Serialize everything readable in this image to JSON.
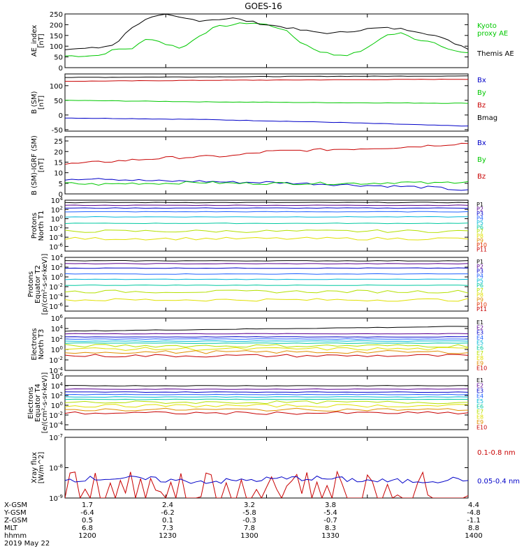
{
  "title": "GOES-16",
  "colors": {
    "black": "#000000",
    "blue": "#0000c8",
    "green": "#00c800",
    "red": "#c80000",
    "p1": "#000000",
    "p2": "#5a0090",
    "p3": "#0000c8",
    "p4": "#1e60ff",
    "p5": "#00b8d8",
    "p6": "#00c8a0",
    "p7": "#b4e000",
    "p8": "#e0e000",
    "p9": "#e09000",
    "p10": "#e03000",
    "p11": "#c80000"
  },
  "chart_data": [
    {
      "type": "line",
      "ylabel": "AE_index\n[nT]",
      "ylim": [
        0,
        250
      ],
      "yticks": [
        "0",
        "50",
        "100",
        "150",
        "200",
        "250"
      ],
      "yticks_values": [
        0,
        50,
        100,
        150,
        200,
        250
      ],
      "x": [
        0,
        5,
        10,
        15,
        20,
        25,
        30,
        35,
        40,
        45,
        50,
        55,
        60,
        65,
        70,
        75,
        80,
        85,
        90,
        95,
        100,
        105,
        110,
        115,
        120
      ],
      "series": [
        {
          "name": "Kyoto\nproxy AE",
          "color": "green",
          "values": [
            55,
            55,
            57,
            85,
            90,
            140,
            110,
            90,
            150,
            190,
            200,
            210,
            200,
            180,
            120,
            80,
            60,
            60,
            90,
            150,
            160,
            130,
            120,
            80,
            65
          ]
        },
        {
          "name": "Themis AE",
          "color": "black",
          "values": [
            85,
            90,
            92,
            110,
            190,
            230,
            245,
            230,
            220,
            225,
            230,
            215,
            200,
            190,
            175,
            165,
            160,
            170,
            180,
            185,
            180,
            170,
            150,
            120,
            90
          ]
        }
      ]
    },
    {
      "type": "line",
      "ylabel": "B (SM)\n[nT]",
      "ylim": [
        -55,
        140
      ],
      "yticks": [
        "-50",
        "0",
        "50",
        "100"
      ],
      "yticks_values": [
        -50,
        0,
        50,
        100
      ],
      "x": [
        0,
        40,
        80,
        120
      ],
      "series": [
        {
          "name": "Bx",
          "color": "blue",
          "values": [
            -10,
            -15,
            -25,
            -38
          ]
        },
        {
          "name": "By",
          "color": "green",
          "values": [
            50,
            45,
            42,
            40
          ]
        },
        {
          "name": "Bz",
          "color": "red",
          "values": [
            115,
            118,
            120,
            122
          ]
        },
        {
          "name": "Bmag",
          "color": "black",
          "values": [
            128,
            130,
            132,
            133
          ]
        }
      ]
    },
    {
      "type": "line",
      "ylabel": "B (SM)-IGRF (SM)\n[nT]",
      "ylim": [
        0,
        27
      ],
      "yticks": [
        "0",
        "5",
        "10",
        "15",
        "20",
        "25"
      ],
      "yticks_values": [
        0,
        5,
        10,
        15,
        20,
        25
      ],
      "x": [
        0,
        10,
        20,
        30,
        40,
        50,
        60,
        70,
        80,
        90,
        100,
        110,
        120
      ],
      "series": [
        {
          "name": "Bx",
          "color": "blue",
          "values": [
            7,
            7.5,
            6.5,
            6,
            6,
            5.5,
            5.5,
            5,
            4.5,
            4,
            3.5,
            3,
            1.5
          ]
        },
        {
          "name": "By",
          "color": "green",
          "values": [
            5,
            4.5,
            5,
            5,
            5.5,
            5,
            5,
            5,
            5,
            5,
            5.5,
            5,
            6
          ]
        },
        {
          "name": "Bz",
          "color": "red",
          "values": [
            14,
            15,
            16,
            17,
            17.5,
            18,
            20,
            20.5,
            21,
            21.5,
            22,
            23,
            24
          ]
        }
      ]
    },
    {
      "type": "line",
      "log": true,
      "ylabel": "Protons\nNorth T1",
      "ylim_exp": [
        -7,
        4
      ],
      "yticks": [
        "10^4",
        "10^2",
        "10^0",
        "10^-2",
        "10^-4",
        "10^-6"
      ],
      "yticks_values": [
        4,
        2,
        0,
        -2,
        -4,
        -6
      ],
      "channels": [
        {
          "name": "P1",
          "color": "p1",
          "level": 3.5
        },
        {
          "name": "P2",
          "color": "p2",
          "level": 2.9
        },
        {
          "name": "P3",
          "color": "p3",
          "level": 2.3
        },
        {
          "name": "P4",
          "color": "p4",
          "level": 1.5
        },
        {
          "name": "P5",
          "color": "p5",
          "level": 0.4
        },
        {
          "name": "P6",
          "color": "p6",
          "level": -1.0
        },
        {
          "name": "P7",
          "color": "p7",
          "level": -2.7
        },
        {
          "name": "P8",
          "color": "p8",
          "level": -4.3
        },
        {
          "name": "P9",
          "color": "p9",
          "level": null
        },
        {
          "name": "P10",
          "color": "p10",
          "level": null
        },
        {
          "name": "P11",
          "color": "p11",
          "level": null
        }
      ]
    },
    {
      "type": "line",
      "log": true,
      "ylabel": "Protons\nEquator T2\n[p/(cm²-s-sr-keV)]",
      "ylim_exp": [
        -7,
        4
      ],
      "yticks": [
        "10^4",
        "10^2",
        "10^0",
        "10^-2",
        "10^-4",
        "10^-6"
      ],
      "yticks_values": [
        4,
        2,
        0,
        -2,
        -4,
        -6
      ],
      "channels": [
        {
          "name": "P1",
          "color": "p1",
          "level": 3.3
        },
        {
          "name": "P2",
          "color": "p2",
          "level": 2.7
        },
        {
          "name": "P3",
          "color": "p3",
          "level": 1.8
        },
        {
          "name": "P4",
          "color": "p4",
          "level": 0.6
        },
        {
          "name": "P5",
          "color": "p5",
          "level": -0.5
        },
        {
          "name": "P6",
          "color": "p6",
          "level": -1.7
        },
        {
          "name": "P7",
          "color": "p7",
          "level": -3.0
        },
        {
          "name": "P8",
          "color": "p8",
          "level": -4.7
        },
        {
          "name": "P9",
          "color": "p9",
          "level": null
        },
        {
          "name": "P10",
          "color": "p10",
          "level": null
        },
        {
          "name": "P11",
          "color": "p11",
          "level": null
        }
      ]
    },
    {
      "type": "line",
      "log": true,
      "ylabel": "Electrons\nNorth T3",
      "ylim_exp": [
        -4,
        6
      ],
      "yticks": [
        "10^6",
        "10^4",
        "10^2",
        "10^0",
        "10^-2",
        "10^-4"
      ],
      "yticks_values": [
        6,
        4,
        2,
        0,
        -2,
        -4
      ],
      "channels": [
        {
          "name": "E1",
          "color": "p1",
          "level": 3.5
        },
        {
          "name": "E2",
          "color": "p2",
          "level": 3.0
        },
        {
          "name": "E3",
          "color": "p3",
          "level": 2.4
        },
        {
          "name": "E4",
          "color": "p4",
          "level": 2.0
        },
        {
          "name": "E5",
          "color": "p5",
          "level": 1.6
        },
        {
          "name": "E6",
          "color": "p6",
          "level": 1.2
        },
        {
          "name": "E7",
          "color": "p7",
          "level": 0.7
        },
        {
          "name": "E8",
          "color": "p8",
          "level": 0.1
        },
        {
          "name": "E9",
          "color": "p9",
          "level": -0.5
        },
        {
          "name": "E10",
          "color": "p11",
          "level": -1.2
        }
      ]
    },
    {
      "type": "line",
      "log": true,
      "ylabel": "Electrons\nEquator T4\n[e/(cm²-s-sr-keV)]",
      "ylim_exp": [
        -5,
        6
      ],
      "yticks": [
        "10^6",
        "10^4",
        "10^2",
        "10^0",
        "10^-2",
        "10^-4"
      ],
      "yticks_values": [
        6,
        4,
        2,
        0,
        -2,
        -4
      ],
      "channels": [
        {
          "name": "E1",
          "color": "p1",
          "level": 4.0
        },
        {
          "name": "E2",
          "color": "p2",
          "level": 3.3
        },
        {
          "name": "E3",
          "color": "p3",
          "level": 2.7
        },
        {
          "name": "E4",
          "color": "p4",
          "level": 2.2
        },
        {
          "name": "E5",
          "color": "p5",
          "level": 1.7
        },
        {
          "name": "E6",
          "color": "p6",
          "level": 1.2
        },
        {
          "name": "E7",
          "color": "p7",
          "level": 0.6
        },
        {
          "name": "E8",
          "color": "p8",
          "level": -0.1
        },
        {
          "name": "E9",
          "color": "p9",
          "level": -0.9
        },
        {
          "name": "E10",
          "color": "p11",
          "level": -1.6
        }
      ]
    },
    {
      "type": "line",
      "log": true,
      "ylabel": "Xray flux\n[W/m^2]",
      "ylim_exp": [
        -9,
        -7
      ],
      "yticks": [
        "10^-7",
        "10^-8",
        "10^-9"
      ],
      "yticks_values": [
        -7,
        -8,
        -9
      ],
      "series": [
        {
          "name": "0.1-0.8 nm",
          "color": "red",
          "base": -9
        },
        {
          "name": "0.05-0.4 nm",
          "color": "blue",
          "base": -8.4
        }
      ]
    }
  ],
  "ephemeris": {
    "rows": [
      {
        "label": "X-GSM",
        "values": [
          "1.7",
          "2.4",
          "3.2",
          "3.8",
          "4.4"
        ]
      },
      {
        "label": "Y-GSM",
        "values": [
          "-6.4",
          "-6.2",
          "-5.8",
          "-5.4",
          "-4.8"
        ]
      },
      {
        "label": "Z-GSM",
        "values": [
          "0.5",
          "0.1",
          "-0.3",
          "-0.7",
          "-1.1"
        ]
      },
      {
        "label": "MLT",
        "values": [
          "6.8",
          "7.3",
          "7.8",
          "8.3",
          "8.8"
        ]
      },
      {
        "label": "hhmm",
        "values": [
          "1200",
          "1230",
          "1300",
          "1330",
          "1400"
        ]
      }
    ],
    "date": "2019 May 22"
  }
}
